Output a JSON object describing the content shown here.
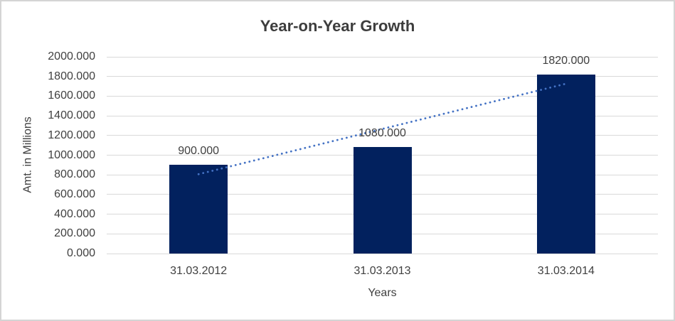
{
  "chart_data": {
    "type": "bar",
    "title": "Year-on-Year Growth",
    "categories": [
      "31.03.2012",
      "31.03.2013",
      "31.03.2014"
    ],
    "values": [
      900,
      1080,
      1820
    ],
    "data_labels": [
      "900.000",
      "1080.000",
      "1820.000"
    ],
    "xlabel": "Years",
    "ylabel": "Amt. in Millions",
    "ylim": [
      0,
      2000
    ],
    "ytick_step": 200,
    "ytick_labels": [
      "0.000",
      "200.000",
      "400.000",
      "600.000",
      "800.000",
      "1000.000",
      "1200.000",
      "1400.000",
      "1600.000",
      "1800.000",
      "2000.000"
    ],
    "grid": true,
    "legend": "none",
    "bar_color": "#02215E",
    "gridline_color": "#D9D9D9",
    "text_color": "#404040",
    "trendline": {
      "type": "linear",
      "style": "dotted",
      "color": "#4472C4",
      "start_value": 806.67,
      "end_value": 1726.67
    }
  }
}
